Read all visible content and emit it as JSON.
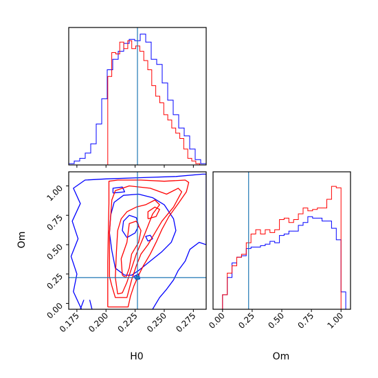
{
  "chart_data": {
    "type": "corner",
    "parameters": [
      "H0",
      "Om"
    ],
    "truths": {
      "H0": 0.227,
      "Om": 0.22
    },
    "colors": {
      "blue": "#0000ff",
      "red": "#ff0000",
      "truth": "#1f77b4"
    },
    "grid": false,
    "panels": [
      {
        "id": "hist-h0",
        "type": "step-histogram",
        "xlim": [
          0.168,
          0.286
        ],
        "xticks": [
          0.175,
          0.2,
          0.225,
          0.25,
          0.275
        ],
        "show_xticklabels": false,
        "show_yticks": false,
        "series": [
          {
            "color": "blue",
            "edges": [
              0.168,
              0.286
            ],
            "values": [
              0.01,
              0.03,
              0.05,
              0.09,
              0.16,
              0.31,
              0.5,
              0.72,
              0.8,
              0.86,
              0.92,
              0.95,
              0.94,
              0.99,
              0.93,
              0.8,
              0.76,
              0.62,
              0.49,
              0.38,
              0.28,
              0.22,
              0.12,
              0.04,
              0.01
            ]
          },
          {
            "color": "red",
            "edges": [
              0.2015,
              0.2805
            ],
            "values": [
              0.67,
              0.85,
              0.84,
              0.93,
              0.88,
              0.94,
              0.88,
              0.9,
              0.86,
              0.79,
              0.72,
              0.6,
              0.52,
              0.47,
              0.38,
              0.34,
              0.28,
              0.24,
              0.2,
              0.12,
              0.05,
              0.03,
              0.01
            ]
          }
        ]
      },
      {
        "id": "contour-h0-om",
        "type": "contour",
        "xlim": [
          0.168,
          0.286
        ],
        "ylim": [
          -0.05,
          1.12
        ],
        "xticks": [
          0.175,
          0.2,
          0.225,
          0.25,
          0.275
        ],
        "yticks": [
          0.0,
          0.25,
          0.5,
          0.75,
          1.0
        ],
        "xtick_labels": [
          "0.175",
          "0.200",
          "0.225",
          "0.250",
          "0.275"
        ],
        "ytick_labels": [
          "0.00",
          "0.25",
          "0.50",
          "0.75",
          "1.00"
        ],
        "xlabel": "H0",
        "ylabel": "Om",
        "series": [
          {
            "color": "blue",
            "levels": [
              [
                [
                  0.179,
                  -0.05
                ],
                [
                  0.172,
                  0.1
                ],
                [
                  0.175,
                  0.25
                ],
                [
                  0.17,
                  0.4
                ],
                [
                  0.176,
                  0.55
                ],
                [
                  0.171,
                  0.7
                ],
                [
                  0.178,
                  0.85
                ],
                [
                  0.172,
                  0.98
                ],
                [
                  0.182,
                  1.05
                ],
                [
                  0.2,
                  1.06
                ],
                [
                  0.23,
                  1.07
                ],
                [
                  0.26,
                  1.08
                ],
                [
                  0.283,
                  1.1
                ],
                [
                  0.286,
                  1.1
                ],
                [
                  0.286,
                  0.5
                ],
                [
                  0.28,
                  0.52
                ],
                [
                  0.272,
                  0.46
                ],
                [
                  0.268,
                  0.36
                ],
                [
                  0.262,
                  0.28
                ],
                [
                  0.258,
                  0.2
                ],
                [
                  0.252,
                  0.12
                ],
                [
                  0.246,
                  0.05
                ],
                [
                  0.24,
                  -0.05
                ]
              ],
              [
                [
                  0.216,
                  0.24
                ],
                [
                  0.208,
                  0.3
                ],
                [
                  0.205,
                  0.45
                ],
                [
                  0.203,
                  0.6
                ],
                [
                  0.204,
                  0.75
                ],
                [
                  0.207,
                  0.86
                ],
                [
                  0.215,
                  0.92
                ],
                [
                  0.228,
                  0.93
                ],
                [
                  0.24,
                  0.9
                ],
                [
                  0.25,
                  0.84
                ],
                [
                  0.258,
                  0.72
                ],
                [
                  0.26,
                  0.62
                ],
                [
                  0.256,
                  0.52
                ],
                [
                  0.248,
                  0.44
                ],
                [
                  0.238,
                  0.36
                ],
                [
                  0.228,
                  0.28
                ],
                [
                  0.222,
                  0.24
                ],
                [
                  0.216,
                  0.24
                ]
              ],
              [
                [
                  0.218,
                  0.56
                ],
                [
                  0.214,
                  0.62
                ],
                [
                  0.215,
                  0.7
                ],
                [
                  0.22,
                  0.75
                ],
                [
                  0.226,
                  0.73
                ],
                [
                  0.228,
                  0.66
                ],
                [
                  0.225,
                  0.6
                ],
                [
                  0.218,
                  0.56
                ]
              ],
              [
                [
                  0.236,
                  0.53
                ],
                [
                  0.234,
                  0.57
                ],
                [
                  0.238,
                  0.58
                ],
                [
                  0.24,
                  0.55
                ],
                [
                  0.236,
                  0.53
                ]
              ],
              [
                [
                  0.226,
                  0.2
                ],
                [
                  0.224,
                  0.23
                ],
                [
                  0.228,
                  0.25
                ],
                [
                  0.229,
                  0.21
                ],
                [
                  0.226,
                  0.2
                ]
              ],
              [
                [
                  0.206,
                  0.94
                ],
                [
                  0.206,
                  0.98
                ],
                [
                  0.214,
                  0.99
                ],
                [
                  0.216,
                  0.95
                ],
                [
                  0.206,
                  0.94
                ]
              ],
              [
                [
                  0.178,
                  -0.05
                ],
                [
                  0.181,
                  0.03
                ]
              ],
              [
                [
                  0.188,
                  -0.05
                ],
                [
                  0.186,
                  0.03
                ]
              ]
            ]
          },
          {
            "color": "red",
            "levels": [
              [
                [
                  0.2015,
                  -0.03
                ],
                [
                  0.2015,
                  0.35
                ],
                [
                  0.202,
                  0.6
                ],
                [
                  0.2025,
                  0.85
                ],
                [
                  0.2025,
                  1.04
                ],
                [
                  0.21,
                  1.05
                ],
                [
                  0.23,
                  1.05
                ],
                [
                  0.25,
                  1.04
                ],
                [
                  0.268,
                  1.05
                ],
                [
                  0.271,
                  1.03
                ],
                [
                  0.269,
                  0.95
                ],
                [
                  0.262,
                  0.85
                ],
                [
                  0.254,
                  0.74
                ],
                [
                  0.248,
                  0.63
                ],
                [
                  0.243,
                  0.52
                ],
                [
                  0.238,
                  0.42
                ],
                [
                  0.232,
                  0.32
                ],
                [
                  0.228,
                  0.24
                ],
                [
                  0.224,
                  0.15
                ],
                [
                  0.221,
                  0.06
                ],
                [
                  0.219,
                  -0.03
                ],
                [
                  0.2015,
                  -0.03
                ]
              ],
              [
                [
                  0.203,
                  0.23
                ],
                [
                  0.203,
                  0.6
                ],
                [
                  0.205,
                  0.88
                ],
                [
                  0.208,
                  0.96
                ],
                [
                  0.22,
                  1.0
                ],
                [
                  0.238,
                  0.98
                ],
                [
                  0.252,
                  0.93
                ],
                [
                  0.262,
                  0.98
                ],
                [
                  0.265,
                  0.95
                ],
                [
                  0.258,
                  0.82
                ],
                [
                  0.248,
                  0.7
                ],
                [
                  0.242,
                  0.6
                ],
                [
                  0.236,
                  0.5
                ],
                [
                  0.23,
                  0.42
                ],
                [
                  0.226,
                  0.32
                ],
                [
                  0.222,
                  0.2
                ],
                [
                  0.218,
                  0.05
                ],
                [
                  0.208,
                  0.05
                ],
                [
                  0.205,
                  0.15
                ],
                [
                  0.203,
                  0.23
                ]
              ],
              [
                [
                  0.21,
                  0.08
                ],
                [
                  0.208,
                  0.22
                ],
                [
                  0.209,
                  0.45
                ],
                [
                  0.21,
                  0.62
                ],
                [
                  0.213,
                  0.72
                ],
                [
                  0.218,
                  0.78
                ],
                [
                  0.226,
                  0.82
                ],
                [
                  0.234,
                  0.84
                ],
                [
                  0.242,
                  0.88
                ],
                [
                  0.246,
                  0.84
                ],
                [
                  0.24,
                  0.76
                ],
                [
                  0.236,
                  0.66
                ],
                [
                  0.232,
                  0.56
                ],
                [
                  0.226,
                  0.42
                ],
                [
                  0.222,
                  0.3
                ],
                [
                  0.218,
                  0.18
                ],
                [
                  0.214,
                  0.09
                ],
                [
                  0.21,
                  0.08
                ]
              ],
              [
                [
                  0.214,
                  0.24
                ],
                [
                  0.213,
                  0.38
                ],
                [
                  0.218,
                  0.52
                ],
                [
                  0.22,
                  0.68
                ],
                [
                  0.226,
                  0.7
                ],
                [
                  0.23,
                  0.62
                ],
                [
                  0.228,
                  0.52
                ],
                [
                  0.222,
                  0.42
                ],
                [
                  0.22,
                  0.3
                ],
                [
                  0.217,
                  0.22
                ],
                [
                  0.214,
                  0.24
                ]
              ],
              [
                [
                  0.236,
                  0.72
                ],
                [
                  0.236,
                  0.78
                ],
                [
                  0.242,
                  0.82
                ],
                [
                  0.246,
                  0.8
                ],
                [
                  0.243,
                  0.74
                ],
                [
                  0.236,
                  0.72
                ]
              ]
            ]
          }
        ]
      },
      {
        "id": "hist-om",
        "type": "step-histogram",
        "xlim": [
          -0.08,
          1.08
        ],
        "xticks": [
          0.0,
          0.25,
          0.5,
          0.75,
          1.0
        ],
        "xtick_labels": [
          "0.00",
          "0.25",
          "0.50",
          "0.75",
          "1.00"
        ],
        "xlabel": "Om",
        "show_yticks": false,
        "series": [
          {
            "color": "blue",
            "edges": [
              0.0,
              1.04
            ],
            "values": [
              0.1,
              0.22,
              0.32,
              0.36,
              0.37,
              0.42,
              0.43,
              0.43,
              0.44,
              0.45,
              0.47,
              0.46,
              0.51,
              0.52,
              0.54,
              0.54,
              0.58,
              0.6,
              0.64,
              0.63,
              0.63,
              0.61,
              0.61,
              0.56,
              0.48,
              0.12
            ]
          },
          {
            "color": "red",
            "edges": [
              0.0,
              1.0
            ],
            "values": [
              0.1,
              0.25,
              0.3,
              0.36,
              0.38,
              0.46,
              0.52,
              0.55,
              0.52,
              0.55,
              0.53,
              0.55,
              0.62,
              0.63,
              0.6,
              0.62,
              0.66,
              0.7,
              0.68,
              0.69,
              0.7,
              0.7,
              0.76,
              0.85,
              0.84
            ]
          }
        ]
      }
    ]
  }
}
